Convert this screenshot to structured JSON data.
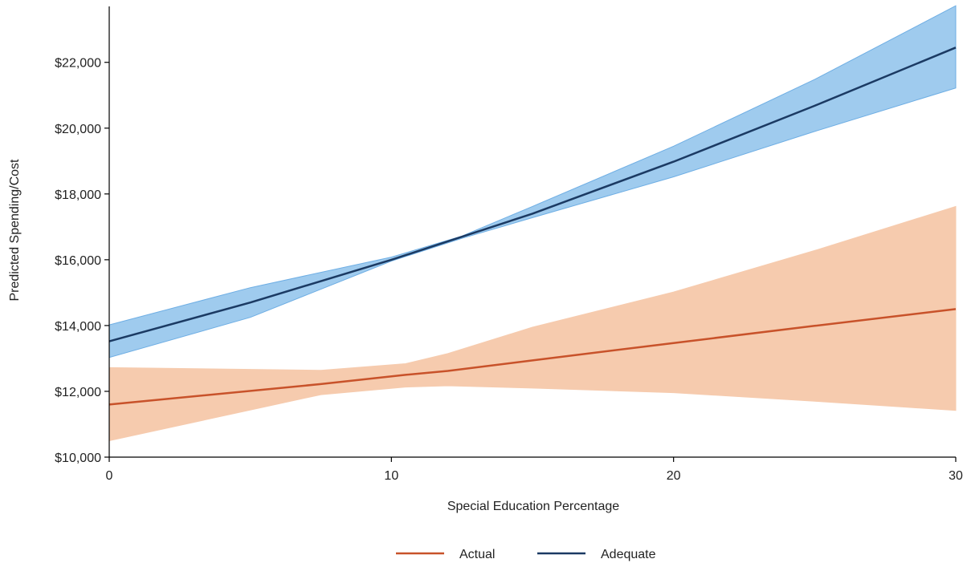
{
  "chart_data": {
    "type": "line",
    "title": "",
    "xlabel": "Special Education Percentage",
    "ylabel": "Predicted Spending/Cost",
    "xlim": [
      0,
      30
    ],
    "ylim": [
      10000,
      23700
    ],
    "x_ticks": [
      0,
      10,
      20,
      30
    ],
    "x_tick_labels": [
      "0",
      "10",
      "20",
      "30"
    ],
    "y_ticks": [
      10000,
      12000,
      14000,
      16000,
      18000,
      20000,
      22000
    ],
    "y_tick_labels": [
      "$10,000",
      "$12,000",
      "$14,000",
      "$16,000",
      "$18,000",
      "$20,000",
      "$22,000"
    ],
    "grid": false,
    "legend_position": "bottom",
    "series": [
      {
        "name": "Actual",
        "color": "#c8522a",
        "band_color": "#f6cbae",
        "x": [
          0,
          7.5,
          10.5,
          12,
          15,
          20,
          25,
          30
        ],
        "values": [
          11600,
          12220,
          12500,
          12620,
          12940,
          13470,
          13990,
          14500
        ],
        "lower": [
          10500,
          11900,
          12130,
          12170,
          12100,
          11960,
          11700,
          11420
        ],
        "upper": [
          12720,
          12640,
          12840,
          13150,
          13950,
          15020,
          16280,
          17620
        ]
      },
      {
        "name": "Adequate",
        "color": "#1b3a63",
        "band_color": "#9fcbee",
        "band_edge_color": "#6eaee4",
        "x": [
          0,
          5,
          10,
          12.5,
          15,
          20,
          25,
          30
        ],
        "values": [
          13520,
          14700,
          16000,
          16700,
          17400,
          18980,
          20680,
          22450
        ],
        "lower": [
          13030,
          14250,
          15960,
          16650,
          17280,
          18520,
          19900,
          21220
        ],
        "upper": [
          14020,
          15150,
          16080,
          16720,
          17620,
          19450,
          21480,
          23720
        ]
      }
    ]
  }
}
